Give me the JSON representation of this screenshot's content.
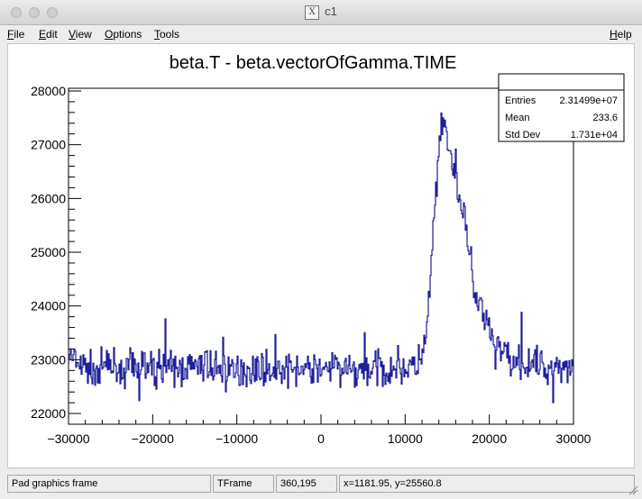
{
  "window": {
    "title": "c1",
    "x_icon": "X"
  },
  "menu": {
    "file": {
      "first": "F",
      "rest": "ile"
    },
    "edit": {
      "first": "E",
      "rest": "dit"
    },
    "view": {
      "first": "V",
      "rest": "iew"
    },
    "options": {
      "first": "O",
      "rest": "ptions"
    },
    "tools": {
      "first": "T",
      "rest": "ools"
    },
    "help": {
      "first": "H",
      "rest": "elp"
    }
  },
  "stats": {
    "entries_label": "Entries",
    "entries_value": "2.31499e+07",
    "mean_label": "Mean",
    "mean_value": "233.6",
    "stddev_label": "Std Dev",
    "stddev_value": "1.731e+04"
  },
  "status": {
    "pad": "Pad graphics frame",
    "object": "TFrame",
    "pixel": "360,195",
    "coords": "x=1181.95, y=25560.8"
  },
  "colors": {
    "histogram": "#1f1f9a"
  },
  "chart_data": {
    "type": "line",
    "title": "beta.T - beta.vectorOfGamma.TIME",
    "xlabel": "",
    "ylabel": "",
    "xlim": [
      -30000,
      30000
    ],
    "ylim": [
      21800,
      28050
    ],
    "x_ticks": [
      -30000,
      -20000,
      -10000,
      0,
      10000,
      20000,
      30000
    ],
    "x_tick_labels": [
      "−30000",
      "−20000",
      "−10000",
      "0",
      "10000",
      "20000",
      "30000"
    ],
    "y_ticks": [
      22000,
      23000,
      24000,
      25000,
      26000,
      27000,
      28000
    ],
    "y_tick_labels": [
      "22000",
      "23000",
      "24000",
      "25000",
      "26000",
      "27000",
      "28000"
    ],
    "grid": false,
    "legend": "none",
    "series": [
      {
        "x": [
          -30000,
          -29000,
          -28000,
          -27000,
          -26000,
          -25000,
          -24000,
          -23000,
          -22000,
          -21000,
          -20000,
          -19000,
          -18000,
          -17000,
          -16000,
          -15000,
          -14000,
          -13000,
          -12000,
          -11000,
          -10000,
          -9000,
          -8000,
          -7000,
          -6000,
          -5000,
          -4000,
          -3000,
          -2000,
          -1000,
          0,
          1000,
          2000,
          3000,
          4000,
          5000,
          6000,
          7000,
          8000,
          9000,
          10000,
          11000,
          11500,
          12000,
          12500,
          13000,
          13500,
          14000,
          14500,
          15000,
          15500,
          16000,
          16500,
          17000,
          17500,
          18000,
          18500,
          19000,
          19500,
          20000,
          21000,
          22000,
          23000,
          24000,
          25000,
          26000,
          27000,
          28000,
          29000,
          30000
        ],
        "values": [
          23100,
          22900,
          22850,
          22800,
          22850,
          22900,
          22800,
          22850,
          22800,
          22900,
          22850,
          22800,
          22850,
          22800,
          22850,
          22900,
          22850,
          22800,
          22850,
          22800,
          22800,
          22850,
          22800,
          22850,
          22800,
          22850,
          22800,
          22850,
          22800,
          22850,
          22800,
          22850,
          22800,
          22850,
          22800,
          22850,
          22800,
          22850,
          22800,
          22850,
          22850,
          22900,
          22950,
          23050,
          23300,
          24500,
          25800,
          26700,
          27400,
          27200,
          26600,
          26300,
          26000,
          25700,
          25200,
          24600,
          24100,
          23900,
          23700,
          23500,
          23300,
          23100,
          23000,
          22950,
          22900,
          22900,
          22850,
          22850,
          22900,
          22850
        ]
      }
    ]
  }
}
